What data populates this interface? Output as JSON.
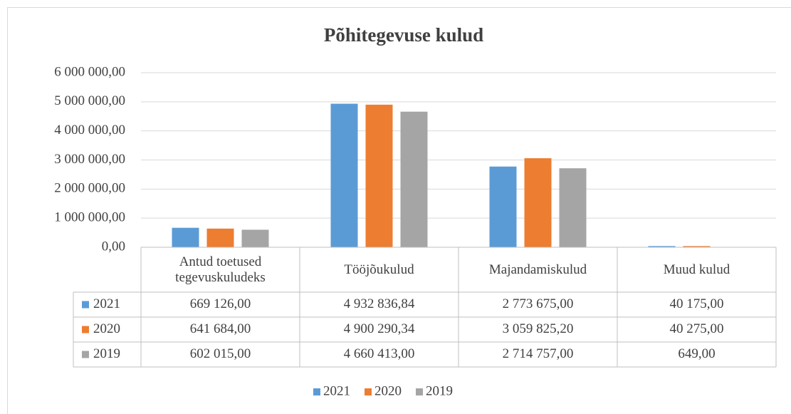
{
  "chart_data": {
    "type": "bar",
    "title": "Põhitegevuse kulud",
    "categories": [
      "Antud toetused tegevuskuludeks",
      "Tööjõukulud",
      "Majandamiskulud",
      "Muud kulud"
    ],
    "series": [
      {
        "name": "2021",
        "color": "#5b9bd5",
        "values": [
          669126,
          4932836.84,
          2773675,
          40175
        ],
        "value_labels": [
          "669 126,00",
          "4 932 836,84",
          "2 773 675,00",
          "40 175,00"
        ]
      },
      {
        "name": "2020",
        "color": "#ed7d31",
        "values": [
          641684,
          4900290.34,
          3059825.2,
          40275
        ],
        "value_labels": [
          "641 684,00",
          "4 900 290,34",
          "3 059 825,20",
          "40 275,00"
        ]
      },
      {
        "name": "2019",
        "color": "#a5a5a5",
        "values": [
          602015,
          4660413,
          2714757,
          649
        ],
        "value_labels": [
          "602 015,00",
          "4 660 413,00",
          "2 714 757,00",
          "649,00"
        ]
      }
    ],
    "ylim": [
      0,
      6000000
    ],
    "yticks": [
      {
        "value": 0,
        "label": "0,00"
      },
      {
        "value": 1000000,
        "label": "1 000 000,00"
      },
      {
        "value": 2000000,
        "label": "2 000 000,00"
      },
      {
        "value": 3000000,
        "label": "3 000 000,00"
      },
      {
        "value": 4000000,
        "label": "4 000 000,00"
      },
      {
        "value": 5000000,
        "label": "5 000 000,00"
      },
      {
        "value": 6000000,
        "label": "6 000 000,00"
      }
    ],
    "grid": true,
    "legend": "bottom",
    "data_table": true
  }
}
